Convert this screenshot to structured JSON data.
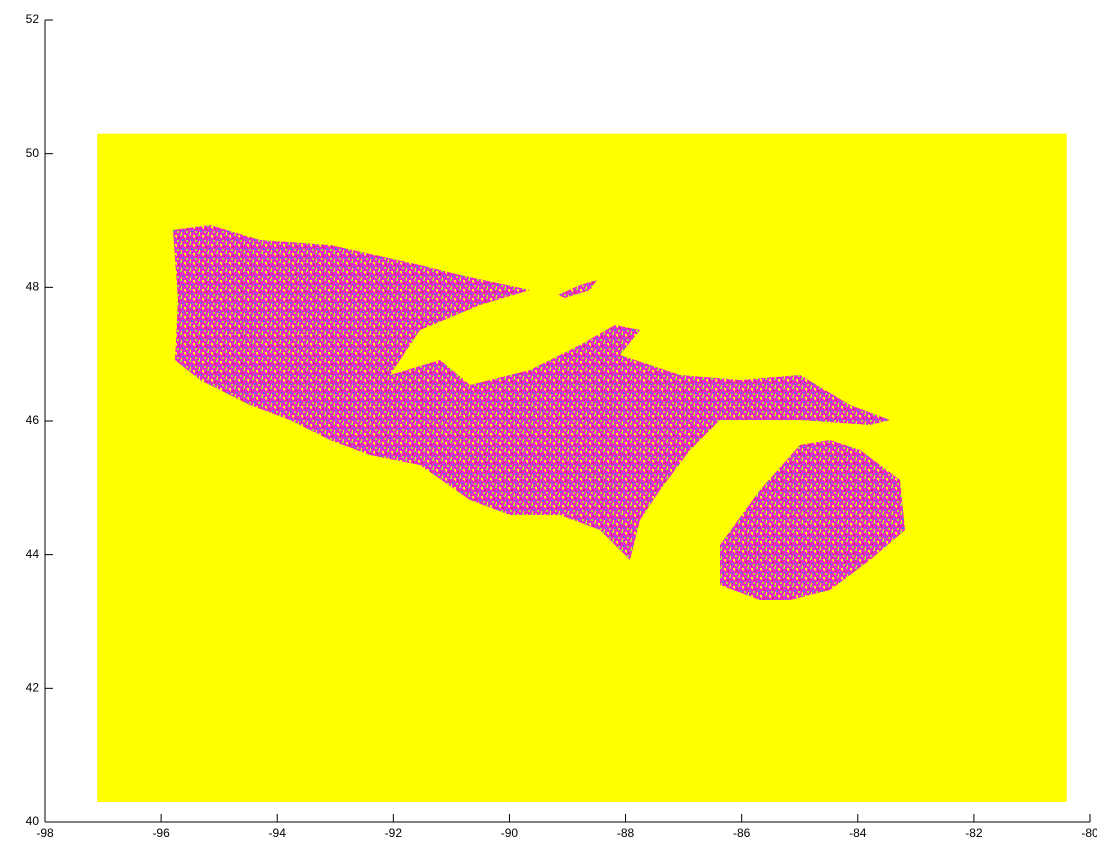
{
  "chart_data": {
    "type": "raster",
    "xlim": [
      -98,
      -80
    ],
    "ylim": [
      40,
      52
    ],
    "xticks": [
      -98,
      -96,
      -94,
      -92,
      -90,
      -88,
      -86,
      -84,
      -82,
      -80
    ],
    "yticks": [
      40,
      42,
      44,
      46,
      48,
      50,
      52
    ],
    "raster": {
      "xlim": [
        -97.1,
        -80.4
      ],
      "ylim": [
        40.3,
        50.3
      ],
      "color": "#ffff00"
    }
  }
}
